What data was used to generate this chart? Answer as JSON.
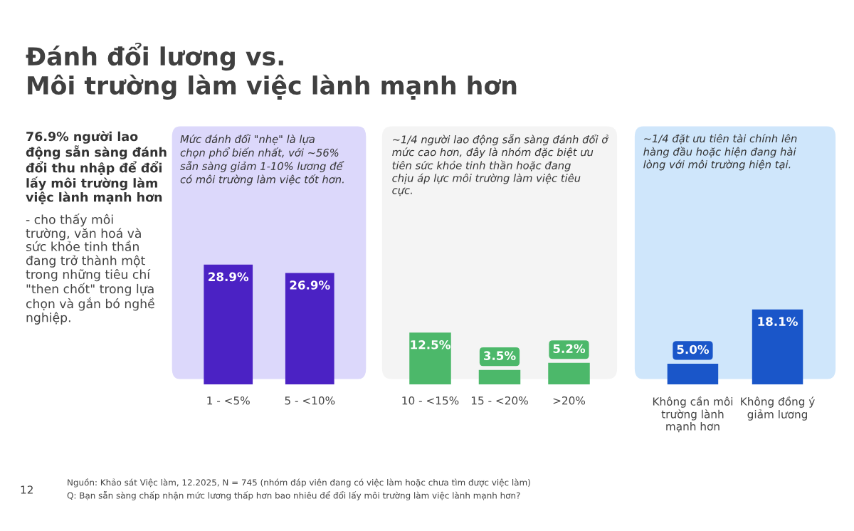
{
  "chart_data": [
    {
      "type": "other",
      "title": "Đánh đổi lương vs.\nMôi trường làm việc lành mạnh hơn",
      "annotations": [
        "76.9% người lao\nđộng sẵn sàng đánh\nđổi thu nhập để đổi\nlấy môi trường làm\nviệc lành mạnh hơn",
        "- cho thấy môi\ntrường, văn hoá và\nsức khỏe tinh thần\nđang trở thành một\ntrong những tiêu chí\n\"then chốt\" trong lựa\nchọn và gắn bó nghề\nnghiệp.",
        "Nguồn: Khảo sát Việc làm, 12.2025, N = 745 (nhóm đáp viên đang có việc làm hoặc chưa tìm được việc làm)",
        "Q: Bạn sẵn sàng chấp nhận mức lương thấp hơn bao nhiêu để đổi lấy môi trường làm việc lành mạnh hơn?",
        "12"
      ]
    },
    {
      "type": "bar",
      "title": "Mức đánh đổi \"nhẹ\" là lựa\nchọn phổ biến nhất, với ~56%\nsẵn sàng giảm 1-10% lương để\ncó môi trường làm việc tốt hơn.",
      "categories": [
        "1 - <5%",
        "5 - <10%"
      ],
      "values": [
        28.9,
        26.9
      ],
      "value_labels": [
        "28.9%",
        "26.9%"
      ],
      "color": "#4b22c4",
      "tick_labels": "x"
    },
    {
      "type": "bar",
      "title": "~1/4 người lao động sẵn sàng đánh đổi ở\nmức cao hơn, đây là nhóm đặc biệt ưu\ntiên sức khỏe tinh thần hoặc đang\nchịu áp lực môi trường làm việc tiêu\ncực.",
      "categories": [
        "10 - <15%",
        "15 - <20%",
        ">20%"
      ],
      "values": [
        12.5,
        3.5,
        5.2
      ],
      "value_labels": [
        "12.5%",
        "3.5%",
        "5.2%"
      ],
      "color": "#4cb86a",
      "tick_labels": "x"
    },
    {
      "type": "bar",
      "title": "~1/4 đặt ưu tiên tài chính lên\nhàng đầu hoặc hiện đang hài\nlòng với môi trường hiện tại.",
      "categories": [
        "Không cần môi\ntrường lành\nmạnh hơn",
        "Không đồng ý\ngiảm lương"
      ],
      "values": [
        5.0,
        18.1
      ],
      "value_labels": [
        "5.0%",
        "18.1%"
      ],
      "color": "#1a56c9",
      "tick_labels": "x"
    }
  ]
}
